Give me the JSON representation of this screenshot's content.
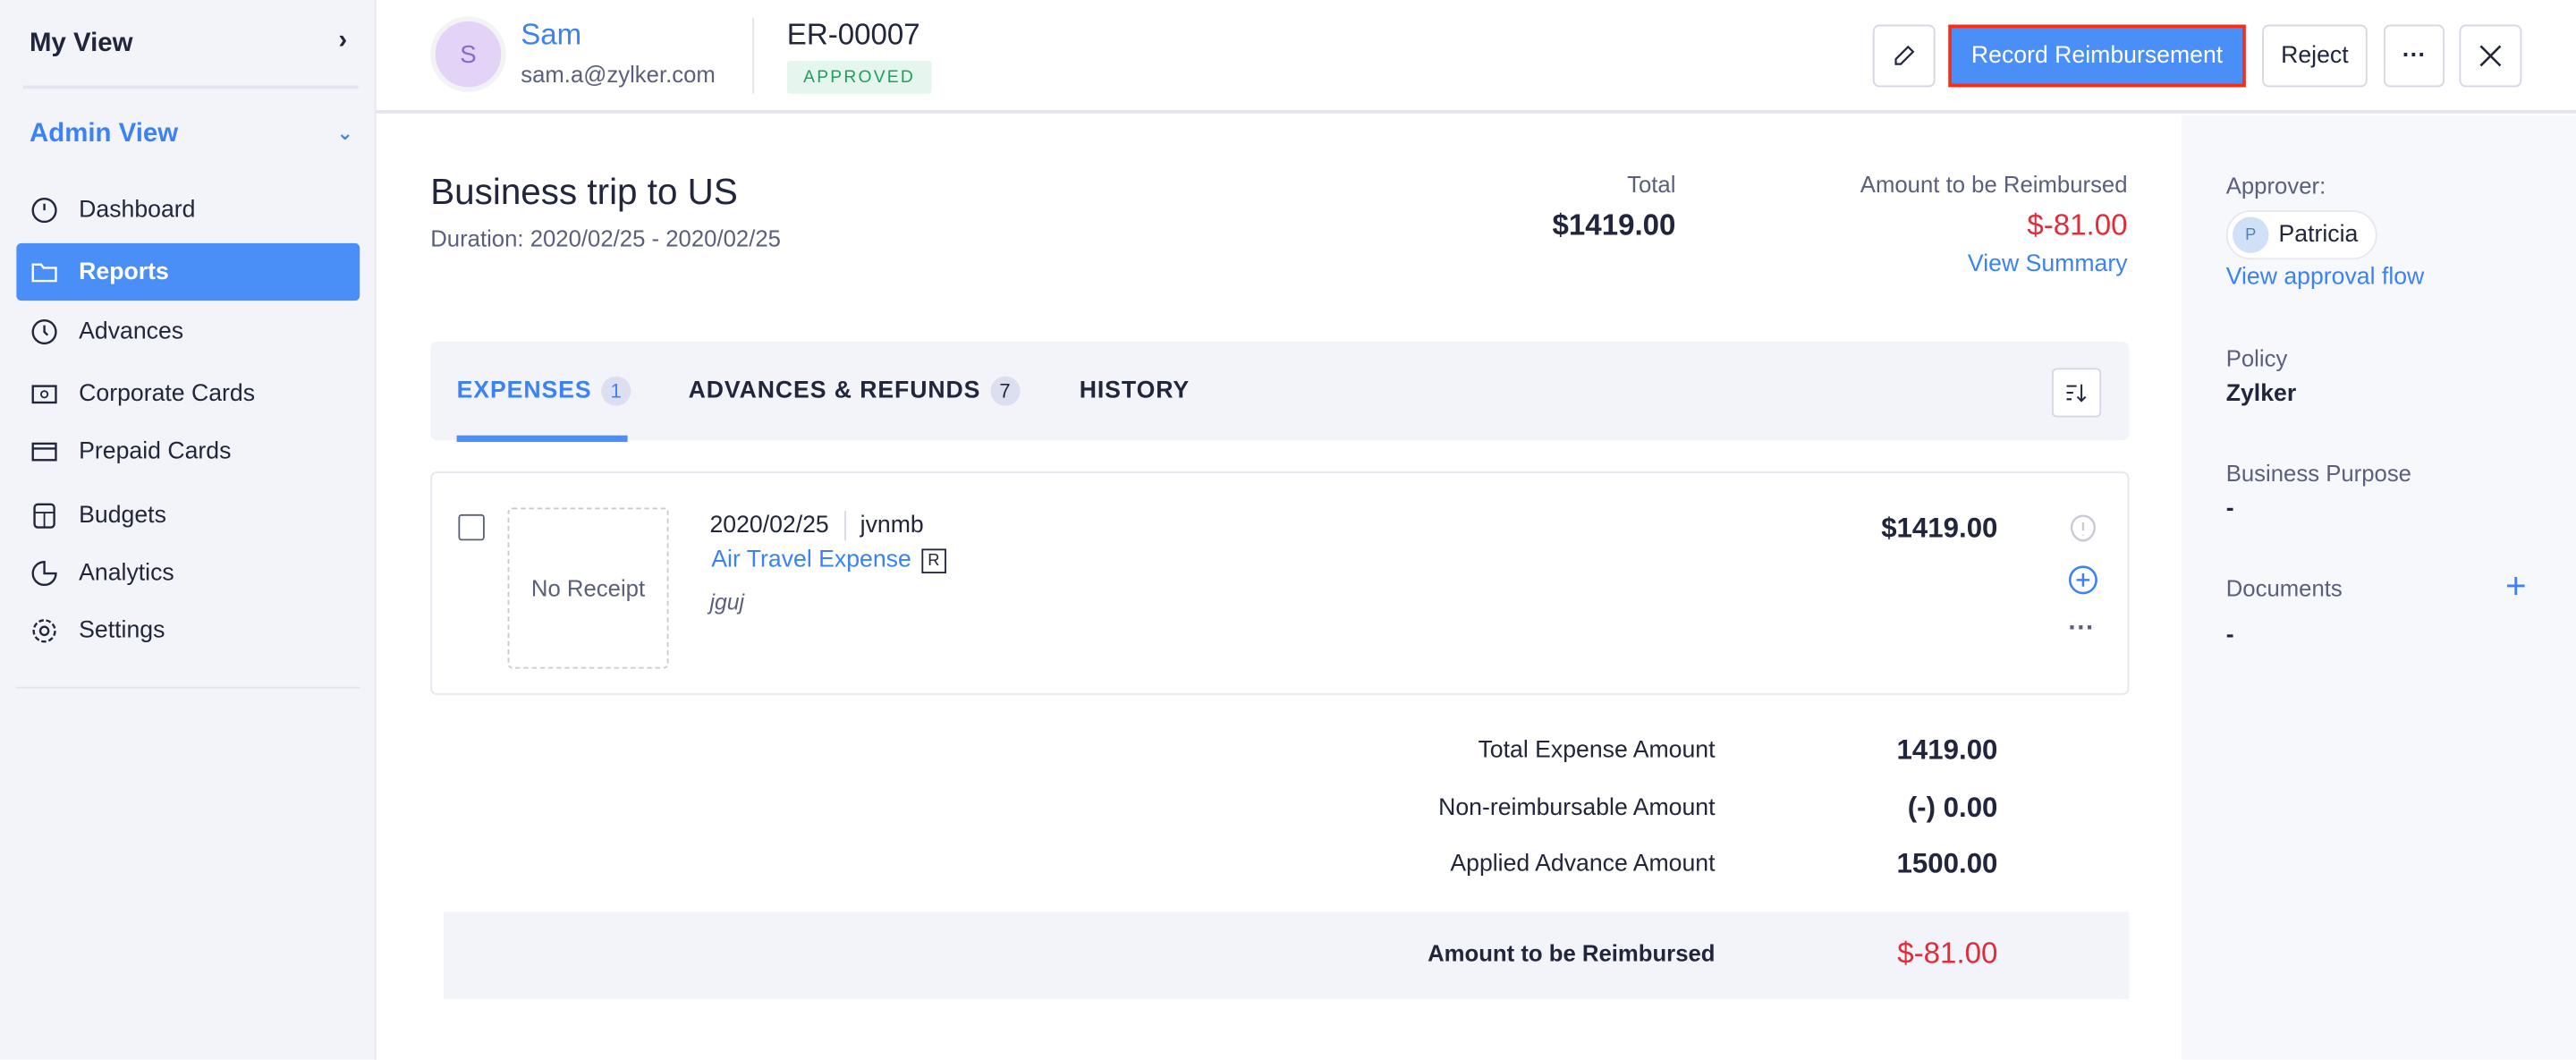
{
  "sidebar": {
    "my_view": "My View",
    "admin_view": "Admin View",
    "items": [
      {
        "label": "Dashboard",
        "icon": "dashboard-icon"
      },
      {
        "label": "Reports",
        "icon": "folder-icon",
        "active": true
      },
      {
        "label": "Advances",
        "icon": "clock-icon"
      },
      {
        "label": "Corporate Cards",
        "icon": "corporate-card-icon"
      },
      {
        "label": "Prepaid Cards",
        "icon": "card-icon"
      },
      {
        "label": "Budgets",
        "icon": "calculator-icon"
      },
      {
        "label": "Analytics",
        "icon": "pie-chart-icon"
      },
      {
        "label": "Settings",
        "icon": "gear-icon"
      }
    ]
  },
  "header": {
    "avatar_initial": "S",
    "user_name": "Sam",
    "user_email": "sam.a@zylker.com",
    "report_id": "ER-00007",
    "status": "APPROVED",
    "record_label": "Record Reimbursement",
    "reject_label": "Reject"
  },
  "report": {
    "title": "Business trip to US",
    "duration": "Duration: 2020/02/25 - 2020/02/25",
    "total_label": "Total",
    "total_value": "$1419.00",
    "reimb_label": "Amount to be Reimbursed",
    "reimb_value": "$-81.00",
    "view_summary": "View Summary"
  },
  "tabs": [
    {
      "label": "EXPENSES",
      "count": "1"
    },
    {
      "label": "ADVANCES & REFUNDS",
      "count": "7"
    },
    {
      "label": "HISTORY"
    }
  ],
  "expense": {
    "no_receipt": "No Receipt",
    "date": "2020/02/25",
    "merchant": "jvnmb",
    "category": "Air Travel Expense",
    "badge": "R",
    "description": "jguj",
    "amount": "$1419.00"
  },
  "summary": [
    {
      "label": "Total Expense Amount",
      "value": "1419.00"
    },
    {
      "label": "Non-reimbursable Amount",
      "value": "(-) 0.00"
    },
    {
      "label": "Applied Advance Amount",
      "value": "1500.00"
    }
  ],
  "summary_total": {
    "label": "Amount to be Reimbursed",
    "value": "$-81.00"
  },
  "details": {
    "approver_label": "Approver:",
    "approver_initial": "P",
    "approver_name": "Patricia",
    "approval_flow": "View approval flow",
    "policy_label": "Policy",
    "policy_value": "Zylker",
    "purpose_label": "Business Purpose",
    "purpose_value": "-",
    "documents_label": "Documents",
    "documents_value": "-"
  },
  "colors": {
    "accent": "#4a8ef8",
    "negative": "#e02c3b",
    "approved": "#1f9e5e"
  }
}
